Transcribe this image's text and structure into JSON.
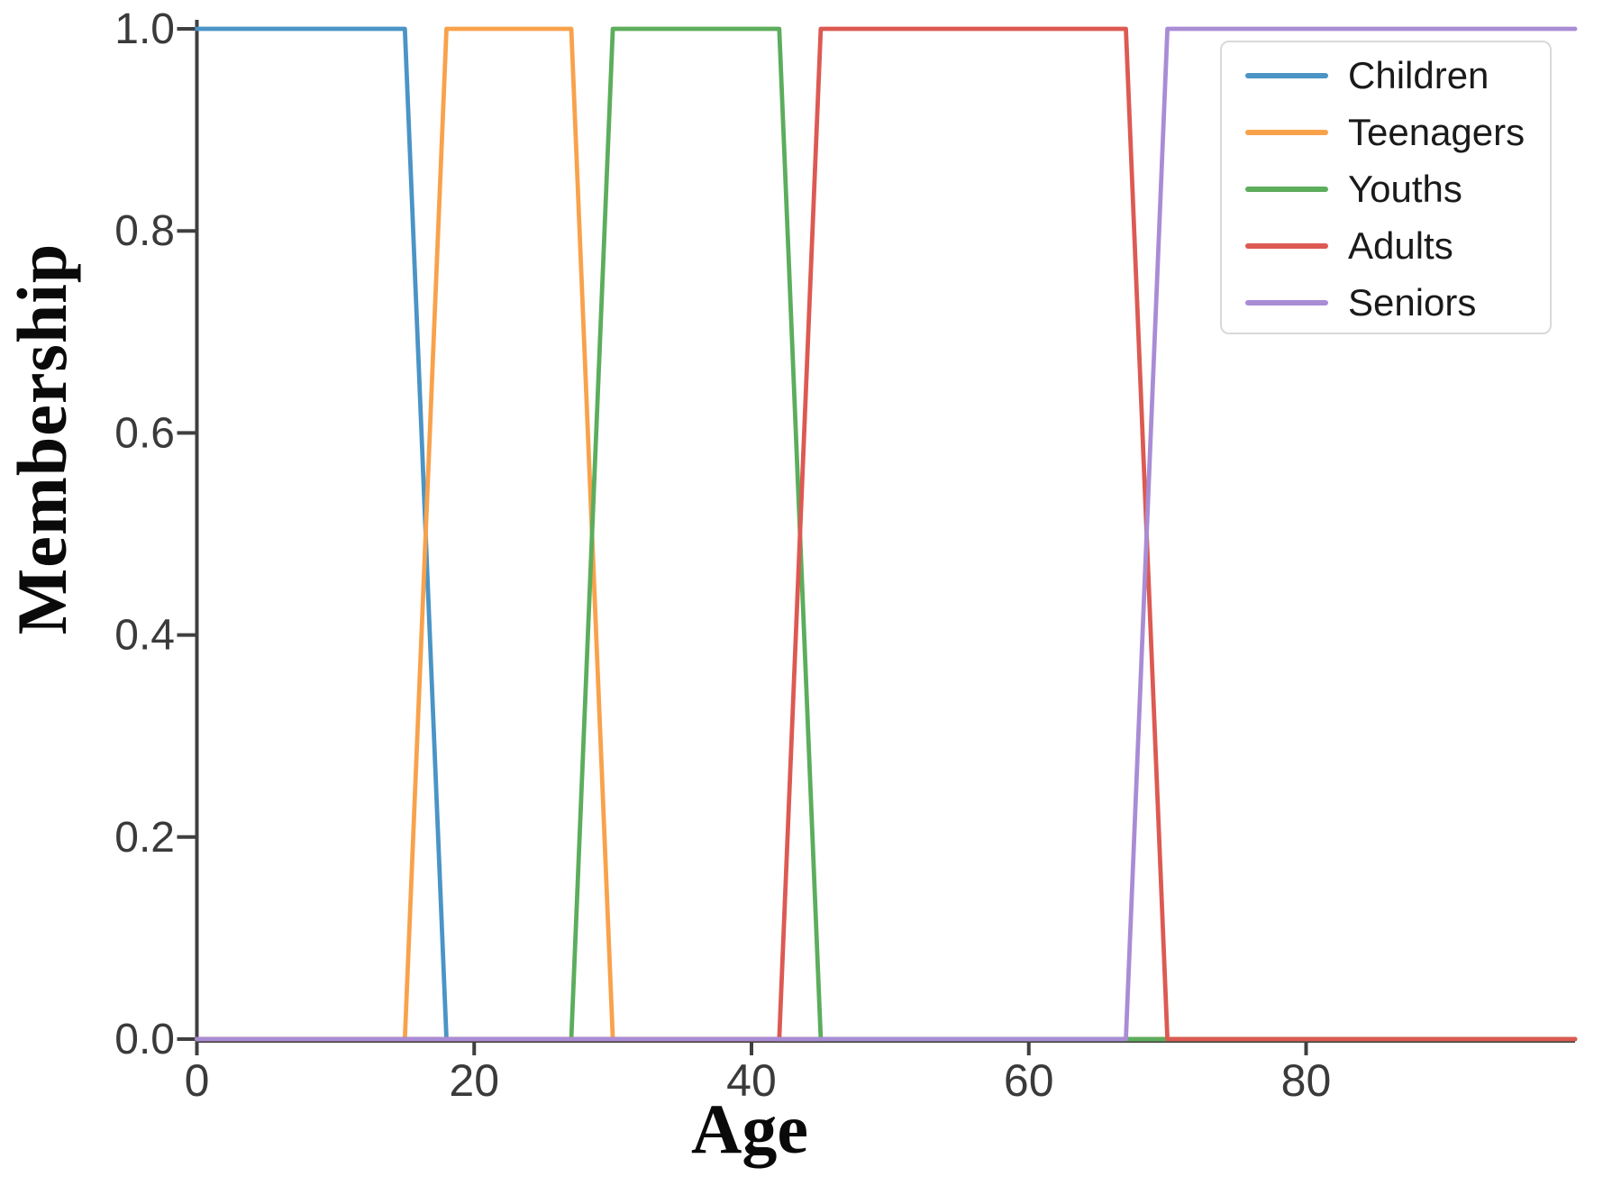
{
  "figure": {
    "background": "#ffffff"
  },
  "axes": {
    "spine_color": "#3f3f3f",
    "tick_color": "#3f3f3f",
    "tick_label_color": "#3a3a3a",
    "label_color": "#0a0a0a"
  },
  "chart_data": {
    "type": "line",
    "title": "",
    "xlabel": "Age",
    "ylabel": "Membership",
    "xlim": [
      0,
      99.4
    ],
    "ylim": [
      0,
      1.01
    ],
    "grid": false,
    "legend_position": "upper right",
    "x_ticks": [
      0,
      20,
      40,
      60,
      80
    ],
    "x_tick_labels": [
      "0",
      "20",
      "40",
      "60",
      "80"
    ],
    "y_ticks": [
      0,
      0.2,
      0.4,
      0.6,
      0.8,
      1.0
    ],
    "y_tick_labels": [
      "0.0",
      "0.2",
      "0.4",
      "0.6",
      "0.8",
      "1.0"
    ],
    "series": [
      {
        "name": "Children",
        "color": "#4A94C6",
        "shape": "trapezoid",
        "points": [
          [
            0,
            1
          ],
          [
            15,
            1
          ],
          [
            18,
            0
          ],
          [
            99.4,
            0
          ]
        ]
      },
      {
        "name": "Teenagers",
        "color": "#F8A24C",
        "shape": "trapezoid",
        "points": [
          [
            0,
            0
          ],
          [
            15,
            0
          ],
          [
            18,
            1
          ],
          [
            27,
            1
          ],
          [
            30,
            0
          ],
          [
            99.4,
            0
          ]
        ]
      },
      {
        "name": "Youths",
        "color": "#5CAD5C",
        "shape": "trapezoid",
        "points": [
          [
            0,
            0
          ],
          [
            27,
            0
          ],
          [
            30,
            1
          ],
          [
            42,
            1
          ],
          [
            45,
            0
          ],
          [
            99.4,
            0
          ]
        ]
      },
      {
        "name": "Adults",
        "color": "#DC5A52",
        "shape": "trapezoid",
        "points": [
          [
            0,
            0
          ],
          [
            42,
            0
          ],
          [
            45,
            1
          ],
          [
            67,
            1
          ],
          [
            70,
            0
          ],
          [
            99.4,
            0
          ]
        ]
      },
      {
        "name": "Seniors",
        "color": "#A98CD5",
        "shape": "trapezoid",
        "points": [
          [
            0,
            0
          ],
          [
            67,
            0
          ],
          [
            70,
            1
          ],
          [
            99.4,
            1
          ]
        ]
      }
    ]
  }
}
